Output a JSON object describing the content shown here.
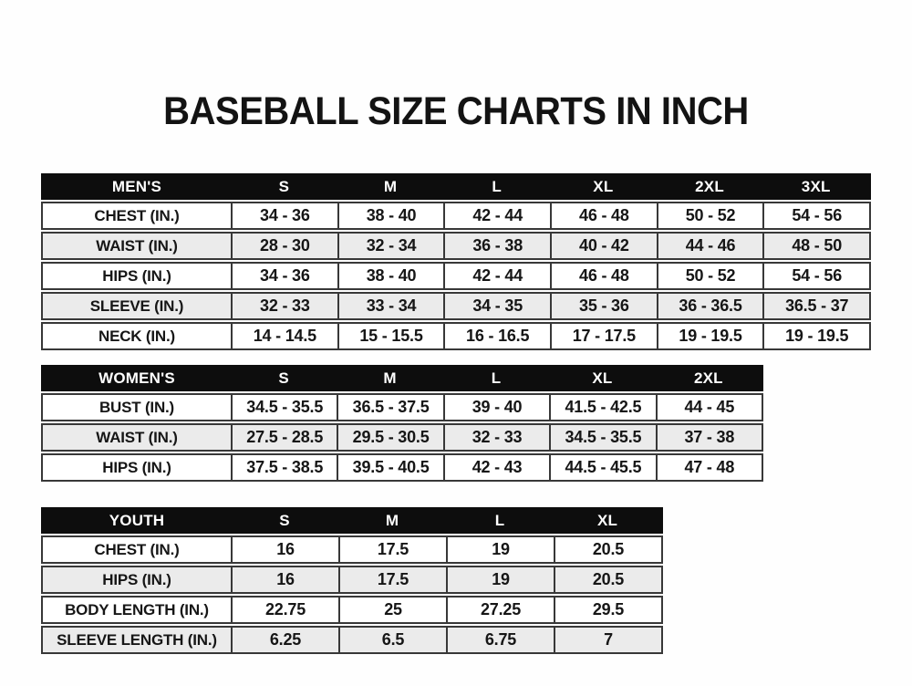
{
  "title": "BASEBALL SIZE CHARTS IN INCH",
  "colors": {
    "header_bg": "#0d0d0d",
    "header_text": "#ffffff",
    "row_bg": "#ffffff",
    "row_alt_bg": "#ebebeb",
    "border": "#383838",
    "text": "#161616",
    "page_bg": "#fefefe"
  },
  "tables": [
    {
      "name": "mens",
      "header": [
        "MEN'S",
        "S",
        "M",
        "L",
        "XL",
        "2XL",
        "3XL"
      ],
      "rows": [
        [
          "CHEST (IN.)",
          "34 - 36",
          "38 - 40",
          "42 - 44",
          "46 - 48",
          "50 - 52",
          "54 - 56"
        ],
        [
          "WAIST (IN.)",
          "28 - 30",
          "32 - 34",
          "36 - 38",
          "40 - 42",
          "44 - 46",
          "48 - 50"
        ],
        [
          "HIPS (IN.)",
          "34 - 36",
          "38 - 40",
          "42 - 44",
          "46 - 48",
          "50 - 52",
          "54 - 56"
        ],
        [
          "SLEEVE (IN.)",
          "32 - 33",
          "33 - 34",
          "34 - 35",
          "35 - 36",
          "36 - 36.5",
          "36.5 - 37"
        ],
        [
          "NECK (IN.)",
          "14 - 14.5",
          "15 - 15.5",
          "16 - 16.5",
          "17 - 17.5",
          "19 - 19.5",
          "19 - 19.5"
        ]
      ]
    },
    {
      "name": "womens",
      "header": [
        "WOMEN'S",
        "S",
        "M",
        "L",
        "XL",
        "2XL"
      ],
      "rows": [
        [
          "BUST (IN.)",
          "34.5 - 35.5",
          "36.5 - 37.5",
          "39 - 40",
          "41.5 - 42.5",
          "44 - 45"
        ],
        [
          "WAIST (IN.)",
          "27.5 - 28.5",
          "29.5 - 30.5",
          "32 - 33",
          "34.5 - 35.5",
          "37 - 38"
        ],
        [
          "HIPS (IN.)",
          "37.5 - 38.5",
          "39.5 - 40.5",
          "42 - 43",
          "44.5 - 45.5",
          "47 - 48"
        ]
      ]
    },
    {
      "name": "youth",
      "header": [
        "YOUTH",
        "S",
        "M",
        "L",
        "XL"
      ],
      "rows": [
        [
          "CHEST (IN.)",
          "16",
          "17.5",
          "19",
          "20.5"
        ],
        [
          "HIPS (IN.)",
          "16",
          "17.5",
          "19",
          "20.5"
        ],
        [
          "BODY LENGTH (IN.)",
          "22.75",
          "25",
          "27.25",
          "29.5"
        ],
        [
          "SLEEVE LENGTH (IN.)",
          "6.25",
          "6.5",
          "6.75",
          "7"
        ]
      ]
    }
  ]
}
